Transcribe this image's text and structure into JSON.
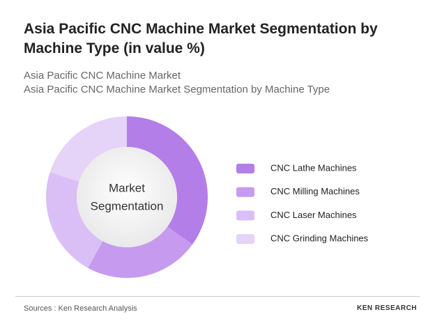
{
  "chart_data": {
    "type": "donut",
    "title": "Asia Pacific CNC Machine Market Segmentation by Machine Type (in value %)",
    "subtitle": [
      "Asia Pacific CNC Machine Market",
      "Asia Pacific CNC Machine Market Segmentation by Machine Type"
    ],
    "center_label": [
      "Market",
      "Segmentation"
    ],
    "categories": [
      "CNC Lathe Machines",
      "CNC Milling Machines",
      "CNC Laser Machines",
      "CNC Grinding Machines"
    ],
    "values": [
      35,
      23,
      22,
      20
    ],
    "colors": [
      "#b47ee8",
      "#c69bef",
      "#d9bff5",
      "#e5d3f8"
    ]
  },
  "source": "Sources : Ken Research Analysis",
  "brand": "KEN RESEARCH"
}
